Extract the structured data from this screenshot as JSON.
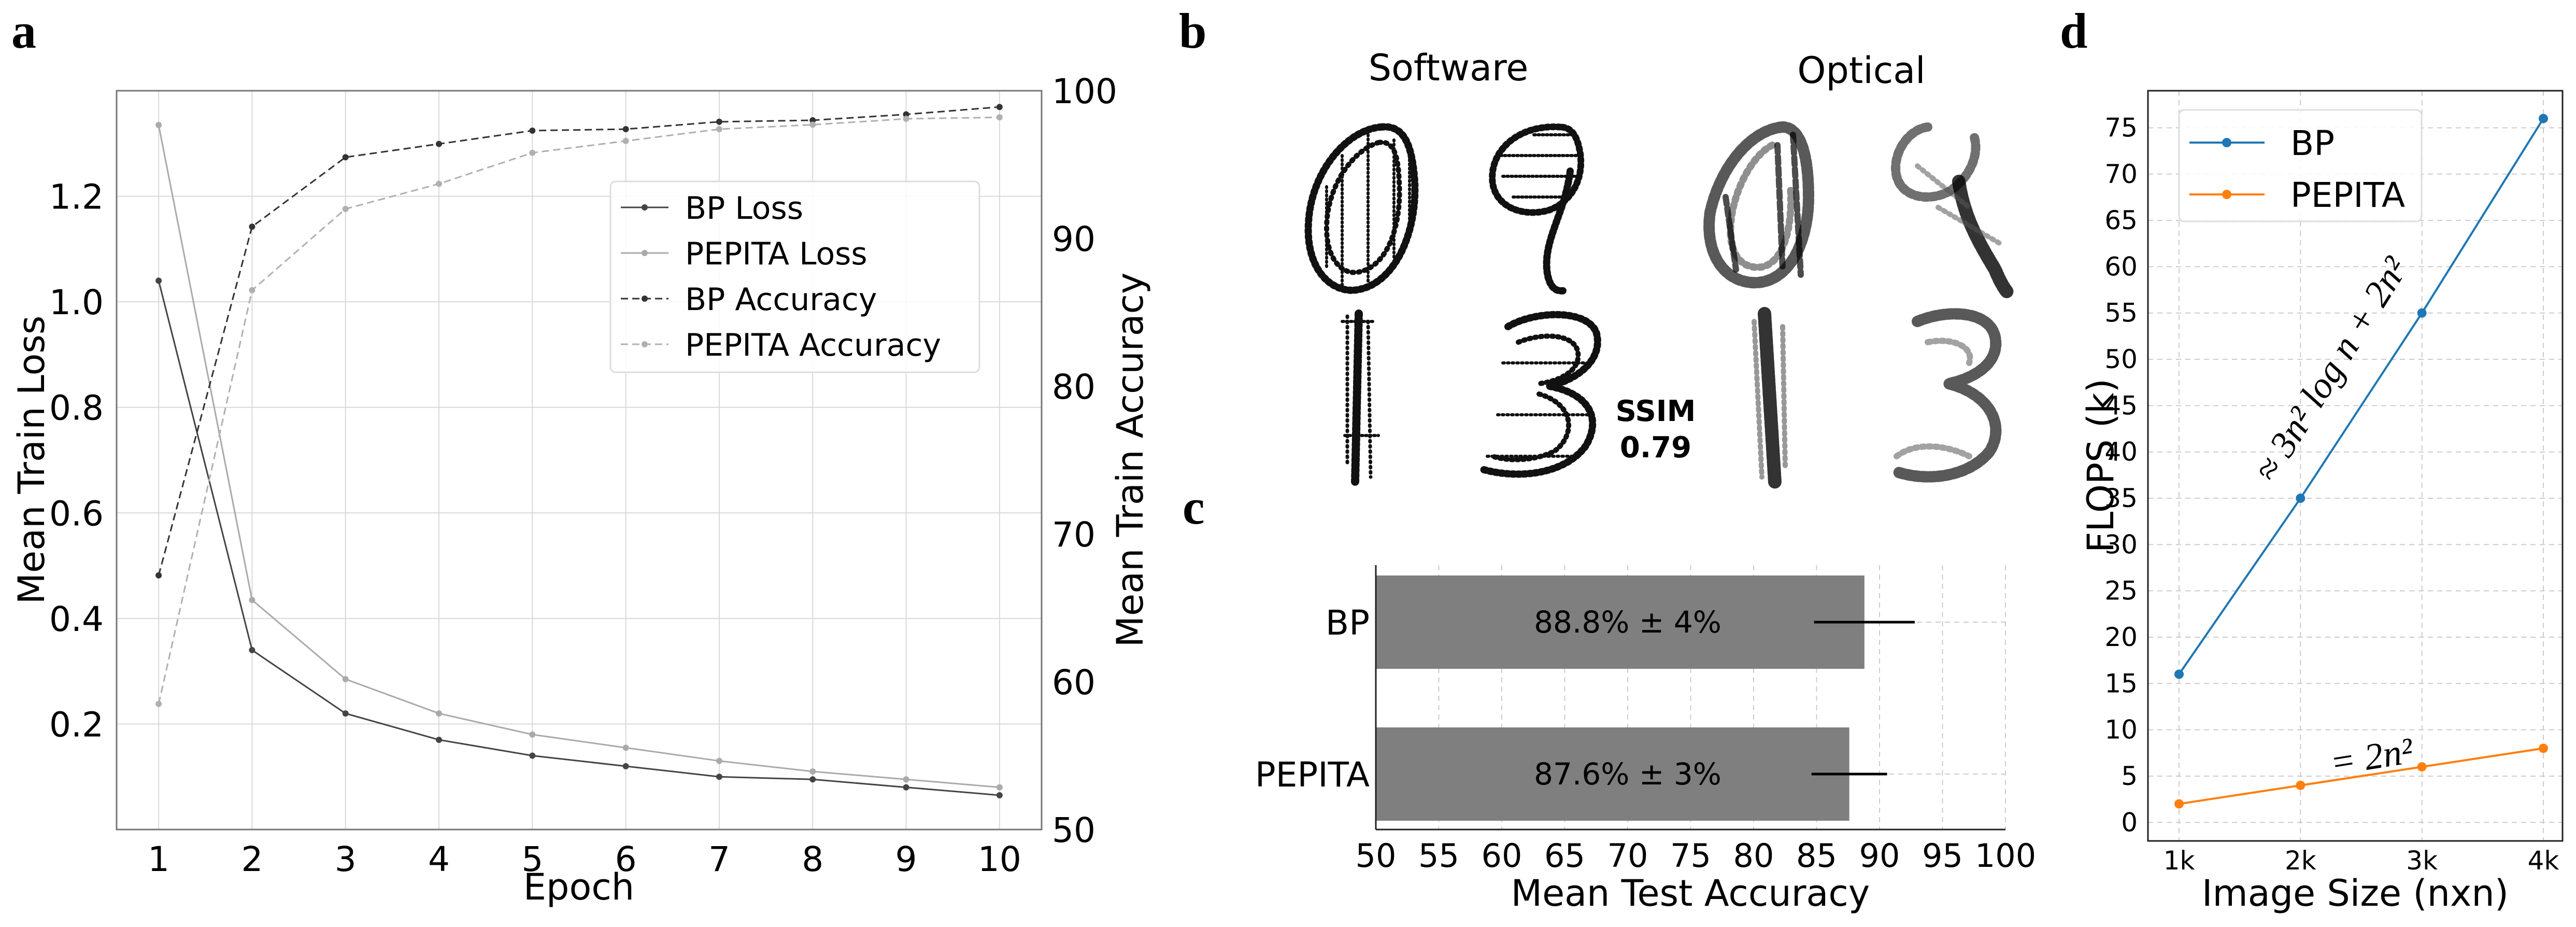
{
  "colors": {
    "bp_loss": "#444444",
    "pepita_loss": "#aaaaaa",
    "bp_acc": "#333333",
    "pepita_acc": "#b0b0b0",
    "bar": "#7f7f7f",
    "flops_bp": "#1f77b4",
    "flops_pepita": "#ff7f0e",
    "grid": "#d9d9d9"
  },
  "panels": {
    "a": "a",
    "b": "b",
    "c": "c",
    "d": "d"
  },
  "digits": {
    "software_title": "Software",
    "optical_title": "Optical",
    "ssim_label": "SSIM",
    "ssim_value": "0.79",
    "digits_shown": [
      "0",
      "9",
      "1",
      "3"
    ]
  },
  "chart_data": [
    {
      "id": "a",
      "type": "line",
      "title": "",
      "xlabel": "Epoch",
      "ylabel_left": "Mean Train Loss",
      "ylabel_right": "Mean Train Accuracy",
      "x": [
        1,
        2,
        3,
        4,
        5,
        6,
        7,
        8,
        9,
        10
      ],
      "xticks": [
        "1",
        "2",
        "3",
        "4",
        "5",
        "6",
        "7",
        "8",
        "9",
        "10"
      ],
      "xlim": [
        0.55,
        10.45
      ],
      "ylim_left": [
        0.0,
        1.4
      ],
      "yticks_left": [
        "0.2",
        "0.4",
        "0.6",
        "0.8",
        "1.0",
        "1.2"
      ],
      "ylim_right": [
        50,
        100
      ],
      "yticks_right": [
        "50",
        "60",
        "70",
        "80",
        "90",
        "100"
      ],
      "grid": true,
      "legend_position": "center-right",
      "series": [
        {
          "name": "BP Loss",
          "axis": "left",
          "style": "solid",
          "values": [
            1.04,
            0.34,
            0.22,
            0.17,
            0.14,
            0.12,
            0.1,
            0.095,
            0.08,
            0.065
          ]
        },
        {
          "name": "PEPITA Loss",
          "axis": "left",
          "style": "solid",
          "values": [
            1.335,
            0.435,
            0.285,
            0.22,
            0.18,
            0.155,
            0.13,
            0.11,
            0.095,
            0.08
          ]
        },
        {
          "name": "BP Accuracy",
          "axis": "right",
          "style": "dashed",
          "values": [
            67.2,
            90.8,
            95.5,
            96.4,
            97.3,
            97.4,
            97.9,
            98.0,
            98.4,
            98.9
          ]
        },
        {
          "name": "PEPITA Accuracy",
          "axis": "right",
          "style": "dashed",
          "values": [
            58.5,
            86.5,
            92.0,
            93.7,
            95.8,
            96.6,
            97.4,
            97.7,
            98.1,
            98.2
          ]
        }
      ]
    },
    {
      "id": "c",
      "type": "bar",
      "orientation": "horizontal",
      "xlabel": "Mean Test Accuracy",
      "xlim": [
        50,
        100
      ],
      "xticks": [
        "50",
        "55",
        "60",
        "65",
        "70",
        "75",
        "80",
        "85",
        "90",
        "95",
        "100"
      ],
      "categories": [
        "BP",
        "PEPITA"
      ],
      "values": [
        88.8,
        87.6
      ],
      "errors": [
        4,
        3
      ],
      "bar_labels": [
        "88.8% ± 4%",
        "87.6% ± 3%"
      ],
      "grid": true
    },
    {
      "id": "d",
      "type": "line",
      "xlabel": "Image Size (nxn)",
      "ylabel": "FLOPS (k)",
      "categories": [
        "1k",
        "2k",
        "3k",
        "4k"
      ],
      "ylim": [
        -2,
        79
      ],
      "yticks": [
        "0",
        "5",
        "10",
        "15",
        "20",
        "25",
        "30",
        "35",
        "40",
        "45",
        "50",
        "55",
        "60",
        "65",
        "70",
        "75"
      ],
      "legend_position": "top-left",
      "grid": true,
      "series": [
        {
          "name": "BP",
          "values": [
            16,
            35,
            55,
            76
          ]
        },
        {
          "name": "PEPITA",
          "values": [
            2,
            4,
            6,
            8
          ]
        }
      ],
      "annotations": [
        "≈ 3n² log n + 2n²",
        "= 2n²"
      ]
    }
  ]
}
